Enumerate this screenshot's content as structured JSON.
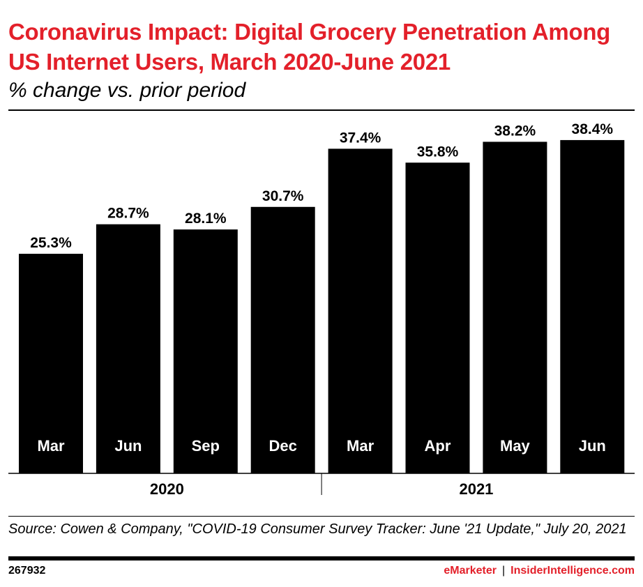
{
  "title": "Coronavirus Impact: Digital Grocery Penetration Among US Internet Users, March 2020-June 2021",
  "subtitle": "% change vs. prior period",
  "source": "Source: Cowen & Company, \"COVID-19 Consumer Survey Tracker: June '21 Update,\" July 20, 2021",
  "footer": {
    "id": "267932",
    "brand1": "eMarketer",
    "separator": "|",
    "brand2": "InsiderIntelligence.com"
  },
  "colors": {
    "accent": "#e3202a",
    "bar": "#000000",
    "bar_label": "#ffffff"
  },
  "chart_data": {
    "type": "bar",
    "categories": [
      "Mar",
      "Jun",
      "Sep",
      "Dec",
      "Mar",
      "Apr",
      "May",
      "Jun"
    ],
    "groups": [
      {
        "label": "2020",
        "count": 4
      },
      {
        "label": "2021",
        "count": 4
      }
    ],
    "values": [
      25.3,
      28.7,
      28.1,
      30.7,
      37.4,
      35.8,
      38.2,
      38.4
    ],
    "data_labels": [
      "25.3%",
      "28.7%",
      "28.1%",
      "30.7%",
      "37.4%",
      "35.8%",
      "38.2%",
      "38.4%"
    ],
    "ylim": [
      0,
      38.4
    ],
    "grid": false,
    "legend": "none"
  }
}
